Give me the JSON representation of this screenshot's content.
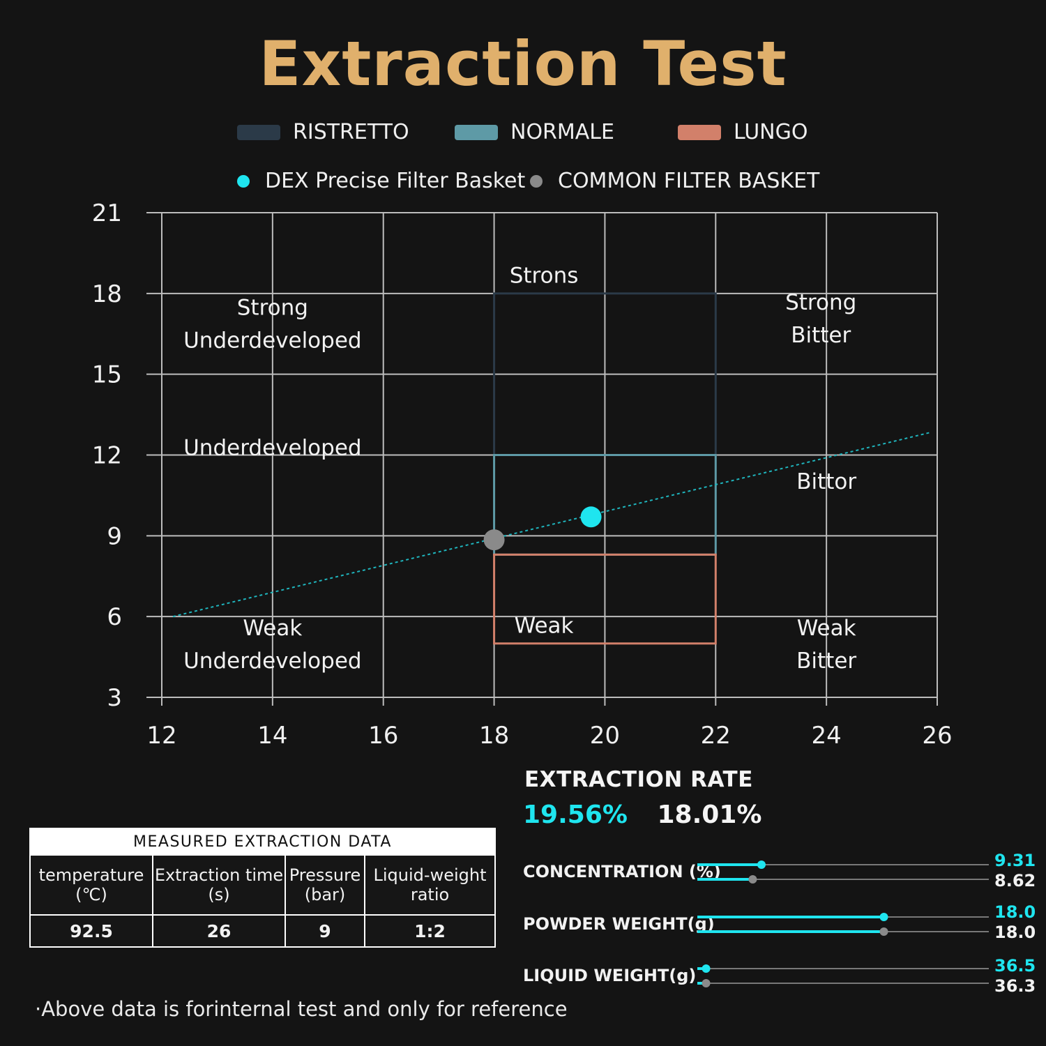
{
  "title": "Extraction Test",
  "legend": {
    "zones": [
      {
        "label": "RISTRETTO",
        "color": "#2b3a48"
      },
      {
        "label": "NORMALE",
        "color": "#5e9aa6"
      },
      {
        "label": "LUNGO",
        "color": "#d2806a"
      }
    ],
    "points": [
      {
        "label": "DEX Precise  Filter Basket",
        "color": "#1fe5ef"
      },
      {
        "label": "COMMON FILTER BASKET",
        "color": "#8a8a8a"
      }
    ]
  },
  "chart_data": {
    "type": "scatter",
    "xlim": [
      12,
      26
    ],
    "ylim": [
      3,
      21
    ],
    "x_ticks": [
      "12",
      "14",
      "16",
      "18",
      "20",
      "22",
      "24",
      "26"
    ],
    "y_ticks": [
      "21",
      "18",
      "15",
      "12",
      "9",
      "6",
      "3"
    ],
    "grid": true,
    "points": [
      {
        "series": "DEX Precise  Filter Basket",
        "x": 19.75,
        "y": 9.7,
        "color": "#1fe5ef"
      },
      {
        "series": "COMMON FILTER BASKET",
        "x": 18.0,
        "y": 8.85,
        "color": "#8a8a8a"
      }
    ],
    "trend_line": {
      "from": [
        12.2,
        6.0
      ],
      "to": [
        25.9,
        12.85
      ],
      "color": "#1fb5bd",
      "style": "dotted"
    },
    "zones": [
      {
        "name": "RISTRETTO",
        "x": [
          18,
          22
        ],
        "y": [
          12,
          18
        ],
        "color": "#2b3a48"
      },
      {
        "name": "NORMALE",
        "x": [
          18,
          22
        ],
        "y": [
          8.3,
          12
        ],
        "color": "#5e9aa6"
      },
      {
        "name": "LUNGO",
        "x": [
          18,
          22
        ],
        "y": [
          5.0,
          8.3
        ],
        "color": "#d2806a"
      }
    ],
    "region_labels": [
      {
        "lines": [
          "Strong",
          "Underdeveloped"
        ],
        "x": 14,
        "y": 17.2
      },
      {
        "lines": [
          "Strons"
        ],
        "x": 18.9,
        "y": 18.4
      },
      {
        "lines": [
          "Strong",
          "Bitter"
        ],
        "x": 23.9,
        "y": 17.4
      },
      {
        "lines": [
          "Underdeveloped"
        ],
        "x": 14,
        "y": 12.0
      },
      {
        "lines": [
          "Bittor"
        ],
        "x": 24,
        "y": 10.75
      },
      {
        "lines": [
          "Weak",
          "Underdeveloped"
        ],
        "x": 14,
        "y": 5.3
      },
      {
        "lines": [
          "Weak"
        ],
        "x": 18.9,
        "y": 5.4
      },
      {
        "lines": [
          "Weak",
          "Bitter"
        ],
        "x": 24,
        "y": 5.3
      }
    ]
  },
  "extraction_rate": {
    "title": "EXTRACTION RATE",
    "dex": "19.56%",
    "common": "18.01%",
    "dex_color": "#1fe5ef",
    "common_color": "#f5f5f5"
  },
  "measured": {
    "caption": "MEASURED EXTRACTION DATA",
    "headers": [
      [
        "temperature",
        "(℃)"
      ],
      [
        "Extraction time",
        "(s)"
      ],
      [
        "Pressure",
        "(bar)"
      ],
      [
        "Liquid-weight",
        "ratio"
      ]
    ],
    "values": [
      "92.5",
      "26",
      "9",
      "1:2"
    ]
  },
  "comparison_bars": [
    {
      "label": "CONCENTRATION (%)",
      "dex": "9.31",
      "common": "8.62",
      "dex_fill": 0.22,
      "common_fill": 0.19
    },
    {
      "label": "POWDER WEIGHT(g)",
      "dex": "18.0",
      "common": "18.0",
      "dex_fill": 0.64,
      "common_fill": 0.64
    },
    {
      "label": "LIQUID WEIGHT(g)",
      "dex": "36.5",
      "common": "36.3",
      "dex_fill": 0.03,
      "common_fill": 0.03
    }
  ],
  "note": "·Above data is forinternal test and only for reference"
}
